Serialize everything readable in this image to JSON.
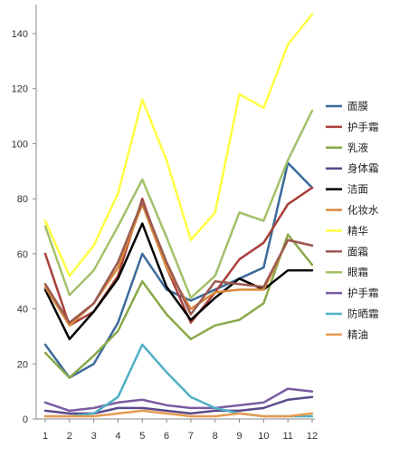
{
  "chart_data": {
    "type": "line",
    "title": "",
    "xlabel": "",
    "ylabel": "",
    "x": [
      1,
      2,
      3,
      4,
      5,
      6,
      7,
      8,
      9,
      10,
      11,
      12
    ],
    "xlim": [
      1,
      12
    ],
    "ylim": [
      0,
      150
    ],
    "yticks": [
      0,
      20,
      40,
      60,
      80,
      100,
      120,
      140
    ],
    "grid": false,
    "legend_position": "right",
    "series": [
      {
        "name": "面膜",
        "color": "#3b6a9a",
        "values": [
          27,
          15,
          20,
          35,
          60,
          47,
          43,
          47,
          51,
          55,
          93,
          84
        ]
      },
      {
        "name": "护手霜",
        "color": "#a8403b",
        "values": [
          60,
          34,
          39,
          52,
          80,
          55,
          35,
          46,
          58,
          64,
          78,
          84
        ]
      },
      {
        "name": "乳液",
        "color": "#8aa84a",
        "values": [
          24,
          15,
          23,
          32,
          50,
          38,
          29,
          34,
          36,
          42,
          67,
          56
        ]
      },
      {
        "name": "身体霜",
        "color": "#5b4a8a",
        "values": [
          3,
          2,
          2,
          4,
          4,
          3,
          2,
          3,
          3,
          4,
          7,
          8
        ]
      },
      {
        "name": "洁面",
        "color": "#000000",
        "values": [
          47,
          29,
          39,
          51,
          71,
          48,
          36,
          44,
          51,
          47,
          54,
          54
        ]
      },
      {
        "name": "化妆水",
        "color": "#d9893b",
        "values": [
          48,
          34,
          42,
          55,
          78,
          55,
          40,
          46,
          47,
          47,
          65,
          63
        ]
      },
      {
        "name": "精华",
        "color": "#ffff40",
        "values": [
          72,
          52,
          63,
          82,
          116,
          94,
          65,
          75,
          118,
          113,
          136,
          147
        ]
      },
      {
        "name": "面霜",
        "color": "#9a5a52",
        "values": [
          49,
          35,
          42,
          57,
          79,
          57,
          38,
          50,
          49,
          48,
          65,
          63
        ]
      },
      {
        "name": "眼霜",
        "color": "#a3c06a",
        "values": [
          70,
          45,
          54,
          70,
          87,
          66,
          44,
          52,
          75,
          72,
          94,
          112
        ]
      },
      {
        "name": "护手霜",
        "color": "#7a5ca3",
        "values": [
          6,
          3,
          4,
          6,
          7,
          5,
          4,
          4,
          5,
          6,
          11,
          10
        ]
      },
      {
        "name": "防晒霜",
        "color": "#4fb0c6",
        "values": [
          1,
          1,
          2,
          8,
          27,
          17,
          8,
          4,
          2,
          1,
          1,
          1
        ]
      },
      {
        "name": "精油",
        "color": "#e69a50",
        "values": [
          1,
          1,
          1,
          2,
          3,
          2,
          1,
          1,
          2,
          1,
          1,
          2
        ]
      }
    ]
  }
}
